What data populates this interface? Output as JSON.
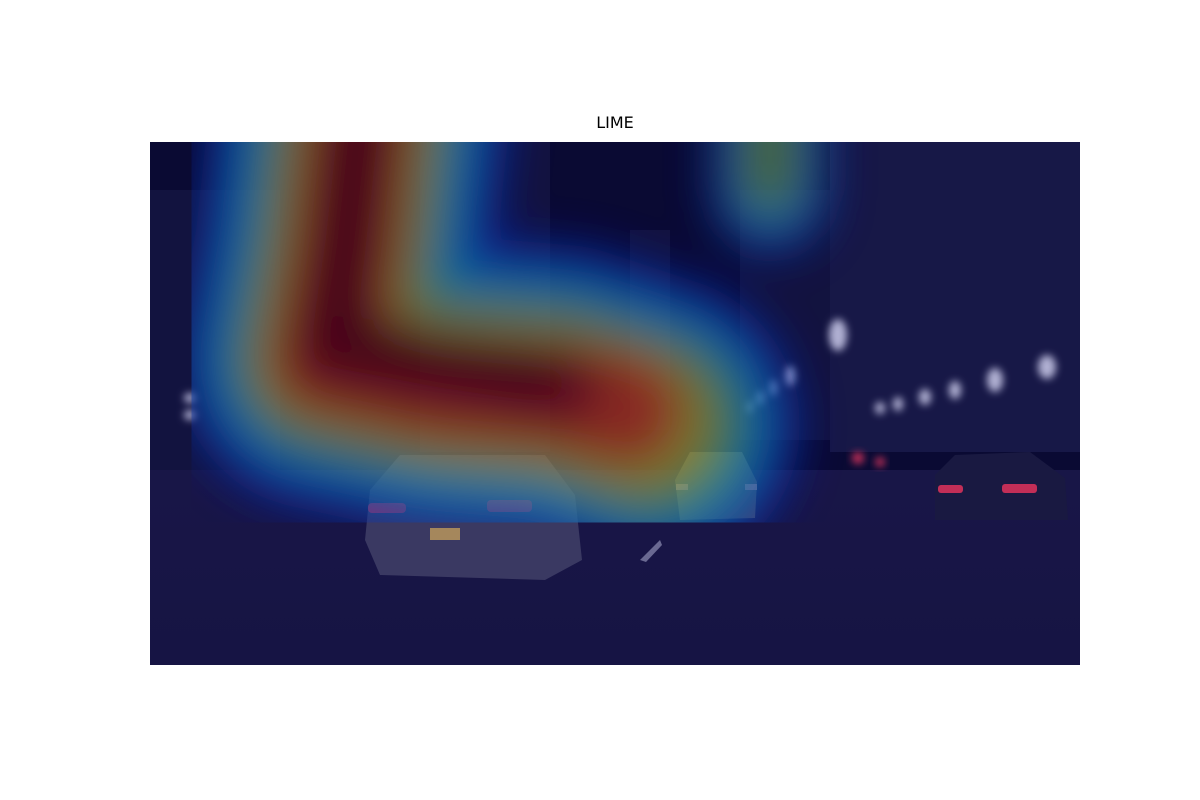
{
  "title": "LIME"
}
